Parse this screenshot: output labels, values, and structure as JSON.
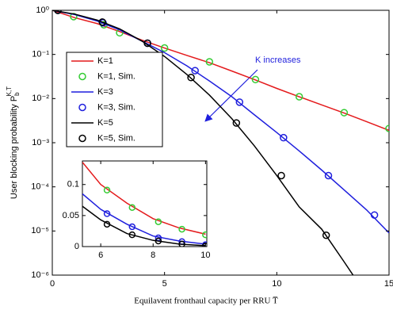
{
  "chart_data": [
    {
      "type": "line",
      "log_y": true,
      "ylabel": "User blocking probability P",
      "ylabel_sub": "b",
      "ylabel_sup": "K,T",
      "xlabel": "Equilavent fronthaul capacity per RRU T̅",
      "xlim": [
        0,
        15
      ],
      "ylim": [
        1e-06,
        1
      ],
      "xticks": [
        0,
        5,
        10,
        15
      ],
      "yticks": [
        {
          "value": 1e-06,
          "label": "10⁻⁶"
        },
        {
          "value": 1e-05,
          "label": "10⁻⁵"
        },
        {
          "value": 0.0001,
          "label": "10⁻⁴"
        },
        {
          "value": 0.001,
          "label": "10⁻³"
        },
        {
          "value": 0.01,
          "label": "10⁻²"
        },
        {
          "value": 0.1,
          "label": "10⁻¹"
        },
        {
          "value": 1,
          "label": "10⁰"
        }
      ],
      "legend": "upper left",
      "annotation": "K increases",
      "series": [
        {
          "name": "K=1",
          "style": "line",
          "color": "#e41a1c",
          "x": [
            0,
            1,
            2,
            3,
            4,
            5,
            6,
            7,
            8,
            9,
            10,
            11,
            12,
            13,
            14,
            15
          ],
          "values": [
            1,
            0.68,
            0.5,
            0.33,
            0.21,
            0.14,
            0.095,
            0.065,
            0.042,
            0.027,
            0.017,
            0.011,
            0.0072,
            0.0047,
            0.003,
            0.0019
          ]
        },
        {
          "name": "K=1, Sim.",
          "style": "marker",
          "color": "#33cc33",
          "x": [
            0.25,
            0.95,
            2.3,
            3.0,
            5.0,
            7.0,
            9.05,
            11.0,
            13.0,
            15.0
          ],
          "values": [
            1,
            0.72,
            0.47,
            0.31,
            0.14,
            0.068,
            0.027,
            0.011,
            0.0048,
            0.0021
          ]
        },
        {
          "name": "K=3",
          "style": "line",
          "color": "#1f1fdd",
          "x": [
            0,
            1,
            2,
            3,
            4,
            5,
            6,
            7,
            8,
            9,
            10,
            11,
            12,
            13,
            14,
            15
          ],
          "values": [
            1,
            0.8,
            0.57,
            0.36,
            0.2,
            0.11,
            0.055,
            0.025,
            0.011,
            0.0043,
            0.0017,
            0.00065,
            0.00024,
            8.5e-05,
            3e-05,
            9e-06
          ]
        },
        {
          "name": "K=3, Sim.",
          "style": "marker",
          "color": "#1f1fdd",
          "x": [
            0.25,
            2.26,
            4.24,
            6.36,
            8.34,
            10.3,
            12.3,
            14.35
          ],
          "values": [
            1,
            0.52,
            0.18,
            0.043,
            0.0083,
            0.0013,
            0.00018,
            2.3e-05
          ]
        },
        {
          "name": "K=5",
          "style": "line",
          "color": "#000000",
          "x": [
            0,
            1,
            2,
            3,
            4,
            5,
            6,
            7,
            8,
            9,
            10,
            11,
            12,
            13,
            14
          ],
          "values": [
            1,
            0.82,
            0.6,
            0.38,
            0.2,
            0.09,
            0.035,
            0.012,
            0.0035,
            0.00085,
            0.00018,
            3.5e-05,
            1.1e-05,
            2e-06,
            3.5e-07
          ]
        },
        {
          "name": "K=5, Sim.",
          "style": "marker",
          "color": "#000000",
          "x": [
            0.25,
            2.23,
            4.24,
            6.18,
            8.2,
            10.2,
            12.2
          ],
          "values": [
            1,
            0.54,
            0.18,
            0.03,
            0.0028,
            0.00018,
            8e-06
          ]
        }
      ]
    },
    {
      "type": "line",
      "xlim": [
        5.3,
        10.05
      ],
      "ylim": [
        0,
        0.138
      ],
      "xticks": [
        6,
        8,
        10
      ],
      "yticks": [
        0,
        0.05,
        0.1
      ],
      "series": [
        {
          "style": "line",
          "color": "#e41a1c",
          "x": [
            5.3,
            6,
            7,
            8,
            9,
            10
          ],
          "values": [
            0.136,
            0.1,
            0.07,
            0.045,
            0.03,
            0.02
          ]
        },
        {
          "style": "marker",
          "color": "#33cc33",
          "x": [
            6.24,
            7.2,
            8.2,
            9.1,
            10.0
          ],
          "values": [
            0.091,
            0.063,
            0.04,
            0.028,
            0.019
          ]
        },
        {
          "style": "line",
          "color": "#1f1fdd",
          "x": [
            5.3,
            6,
            7,
            8,
            9,
            10
          ],
          "values": [
            0.085,
            0.06,
            0.036,
            0.017,
            0.009,
            0.004
          ]
        },
        {
          "style": "marker",
          "color": "#1f1fdd",
          "x": [
            6.24,
            7.2,
            8.2,
            9.1,
            10.0
          ],
          "values": [
            0.053,
            0.032,
            0.014,
            0.008,
            0.003
          ]
        },
        {
          "style": "line",
          "color": "#000000",
          "x": [
            5.3,
            6,
            7,
            8,
            9,
            10
          ],
          "values": [
            0.065,
            0.043,
            0.021,
            0.01,
            0.004,
            0.0015
          ]
        },
        {
          "style": "marker",
          "color": "#000000",
          "x": [
            6.24,
            7.2,
            8.2,
            9.1,
            10.0
          ],
          "values": [
            0.036,
            0.019,
            0.009,
            0.004,
            0.001
          ]
        }
      ]
    }
  ]
}
